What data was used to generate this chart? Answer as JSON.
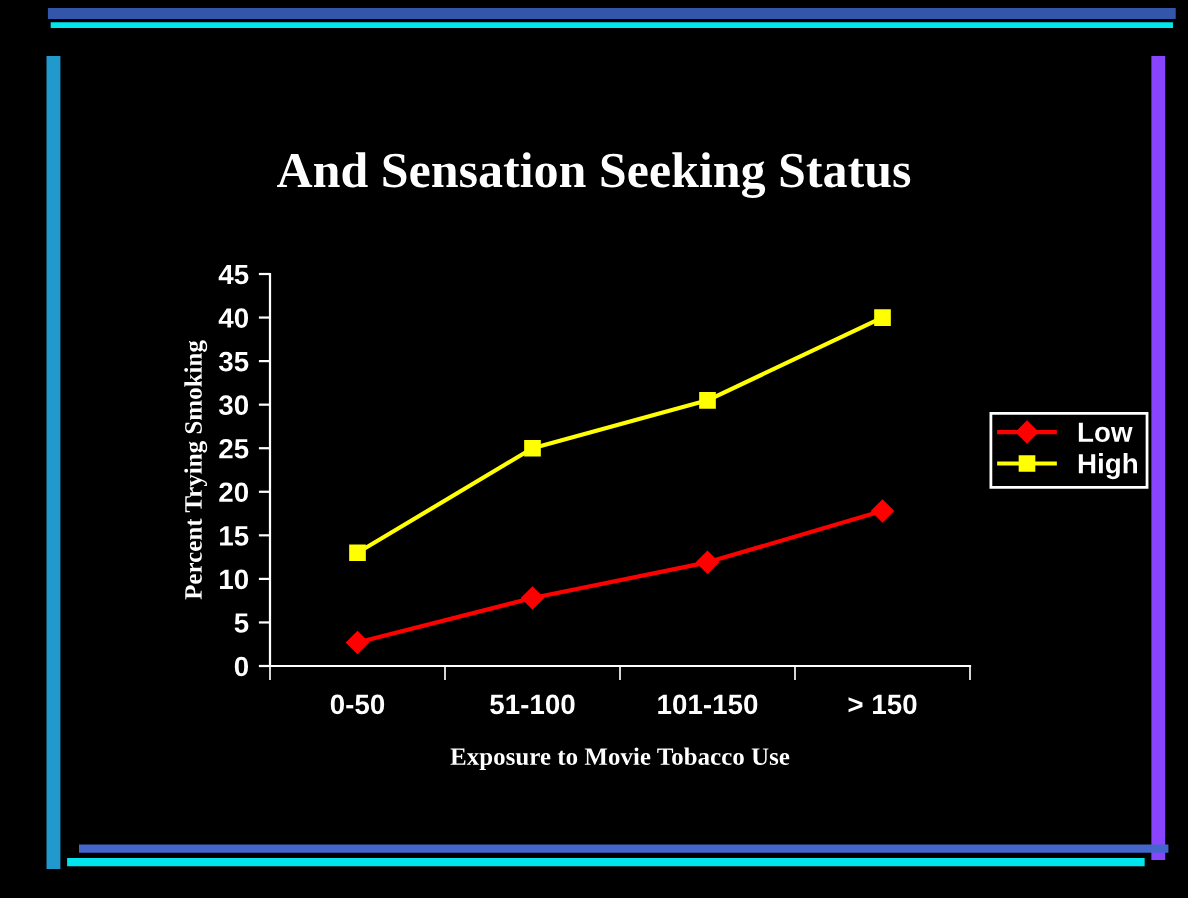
{
  "chart_data": {
    "type": "line",
    "title": "And Sensation Seeking Status",
    "xlabel": "Exposure to Movie Tobacco Use",
    "ylabel": "Percent Trying Smoking",
    "categories": [
      "0-50",
      "51-100",
      "101-150",
      "> 150"
    ],
    "series": [
      {
        "name": "Low",
        "color": "#ff0000",
        "marker": "diamond",
        "values": [
          2.7,
          7.8,
          11.9,
          17.8
        ]
      },
      {
        "name": "High",
        "color": "#ffff00",
        "marker": "square",
        "values": [
          13,
          25,
          30.5,
          40
        ]
      }
    ],
    "ylim": [
      0,
      45
    ],
    "yticks": [
      0,
      5,
      10,
      15,
      20,
      25,
      30,
      35,
      40,
      45
    ],
    "grid": false,
    "legend": "right",
    "line_style": "solid"
  }
}
